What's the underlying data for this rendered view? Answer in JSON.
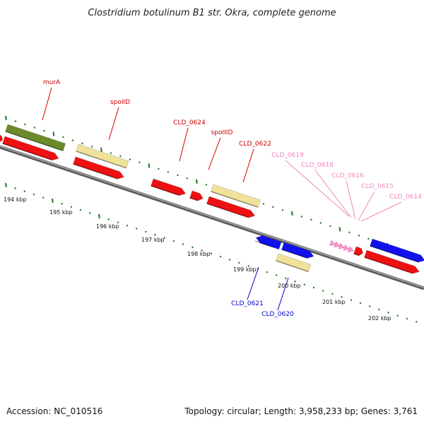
{
  "title": "Clostridium botulinum B1 str. Okra, complete genome",
  "footer": {
    "accession": "Accession: NC_010516",
    "topology": "Topology: circular; Length: 3,958,233 bp; Genes: 3,761"
  },
  "colors": {
    "backbone": "#888888",
    "tick": "#1a7a1a",
    "gene_red": "#ee1111",
    "gene_olive": "#6b8a2a",
    "gene_khaki": "#efe39a",
    "gene_blue": "#1111ee",
    "gene_pink": "#ff99cc",
    "label_red": "#cc0000",
    "label_blue": "#0000cc",
    "label_pink": "#ee88bb"
  },
  "kbp_labels": [
    "194 kbp",
    "195 kbp",
    "196 kbp",
    "197 kbp",
    "198 kbp",
    "199 kbp",
    "200 kbp",
    "201 kbp",
    "202 kbp"
  ],
  "gene_labels": [
    {
      "text": "murA",
      "color": "label_red"
    },
    {
      "text": "spoIID",
      "color": "label_red"
    },
    {
      "text": "CLD_0624",
      "color": "label_red"
    },
    {
      "text": "spoIIID",
      "color": "label_red"
    },
    {
      "text": "CLD_0622",
      "color": "label_red"
    },
    {
      "text": "CLD_0619",
      "color": "label_pink"
    },
    {
      "text": "CLD_0618",
      "color": "label_pink"
    },
    {
      "text": "CLD_0616",
      "color": "label_pink"
    },
    {
      "text": "CLD_0615",
      "color": "label_pink"
    },
    {
      "text": "CLD_0614",
      "color": "label_pink"
    },
    {
      "text": "CLD_0621",
      "color": "label_blue"
    },
    {
      "text": "CLD_0620",
      "color": "label_blue"
    }
  ]
}
